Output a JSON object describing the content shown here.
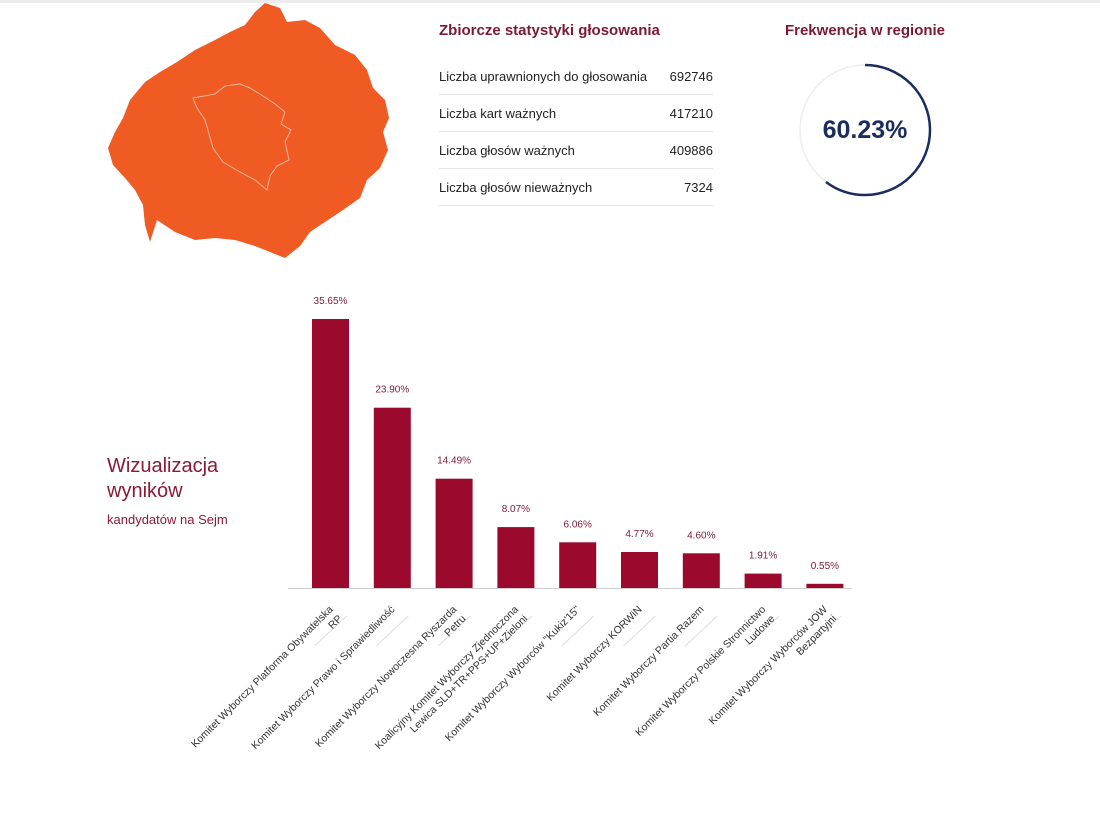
{
  "stats": {
    "title": "Zbiorcze statystyki głosowania",
    "rows": [
      {
        "label": "Liczba uprawnionych do głosowania",
        "value": "692746"
      },
      {
        "label": "Liczba kart ważnych",
        "value": "417210"
      },
      {
        "label": "Liczba głosów ważnych",
        "value": "409886"
      },
      {
        "label": "Liczba głosów nieważnych",
        "value": "7324"
      }
    ]
  },
  "turnout": {
    "title": "Frekwencja w regionie",
    "value_label": "60.23%",
    "fraction": 0.6023,
    "color": "#1b2d5e"
  },
  "visualization": {
    "title_line1": "Wizualizacja",
    "title_line2": "wyników",
    "subtitle": "kandydatów na Sejm"
  },
  "colors": {
    "map_fill": "#f05a23",
    "bar": "#9b0a2c",
    "heading": "#7a1a35"
  },
  "chart_data": {
    "type": "bar",
    "categories": [
      [
        "Komitet Wyborczy Platforma Obywatelska",
        "RP"
      ],
      [
        "Komitet Wyborczy Prawo i Sprawiedliwość"
      ],
      [
        "Komitet Wyborczy Nowoczesna Ryszarda",
        "Petru"
      ],
      [
        "Koalicyjny Komitet Wyborczy Zjednoczona",
        "Lewica SLD+TR+PPS+UP+Zieloni"
      ],
      [
        "Komitet Wyborczy Wyborców \"Kukiz'15\""
      ],
      [
        "Komitet Wyborczy KORWiN"
      ],
      [
        "Komitet Wyborczy Partia Razem"
      ],
      [
        "Komitet Wyborczy Polskie Stronnictwo",
        "Ludowe"
      ],
      [
        "Komitet Wyborczy Wyborców JOW",
        "Bezpartyjni"
      ]
    ],
    "values": [
      35.65,
      23.9,
      14.49,
      8.07,
      6.06,
      4.77,
      4.6,
      1.91,
      0.55
    ],
    "value_labels": [
      "35.65%",
      "23.90%",
      "14.49%",
      "8.07%",
      "6.06%",
      "4.77%",
      "4.60%",
      "1.91%",
      "0.55%"
    ],
    "title": "",
    "xlabel": "",
    "ylabel": "",
    "ylim": [
      0,
      35.65
    ],
    "grid": false,
    "legend": "none"
  }
}
